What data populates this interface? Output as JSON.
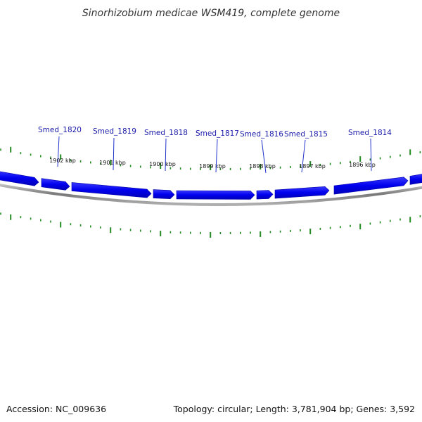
{
  "title": "Sinorhizobium medicae WSM419, complete genome",
  "footer": {
    "accession": "Accession: NC_009636",
    "summary": "Topology: circular; Length: 3,781,904 bp; Genes: 3,592"
  },
  "colors": {
    "gene": "#0000ee",
    "gene_label": "#1a1aaa",
    "label_line": "#2233cc",
    "tick": "#228b22",
    "backbone": "#888888"
  },
  "genes": [
    {
      "label": "Smed_1820"
    },
    {
      "label": "Smed_1819"
    },
    {
      "label": "Smed_1818"
    },
    {
      "label": "Smed_1817"
    },
    {
      "label": "Smed_1816"
    },
    {
      "label": "Smed_1815"
    },
    {
      "label": "Smed_1814"
    }
  ],
  "kbp_ticks": [
    {
      "label": "1902 kbp"
    },
    {
      "label": "1901 kbp"
    },
    {
      "label": "1900 kbp"
    },
    {
      "label": "1899 kbp"
    },
    {
      "label": "1898 kbp"
    },
    {
      "label": "1897 kbp"
    },
    {
      "label": "1896 kbp"
    }
  ]
}
